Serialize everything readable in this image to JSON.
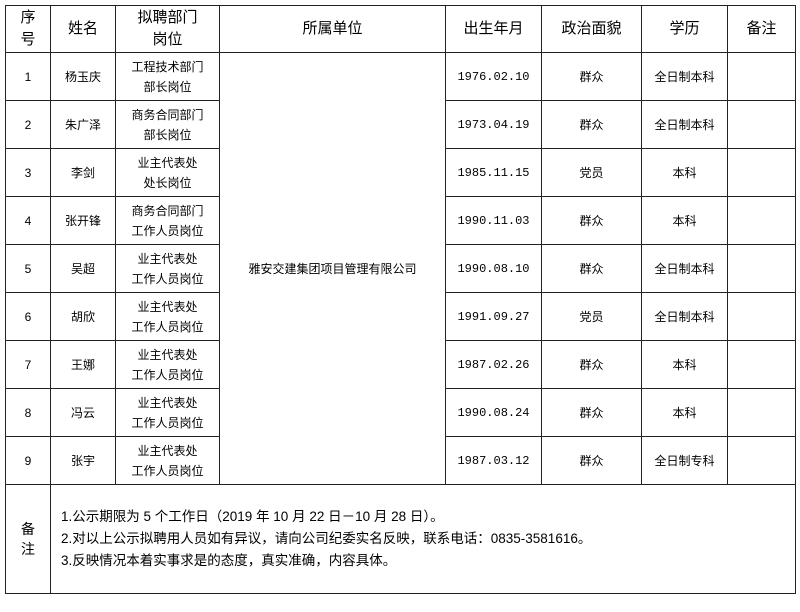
{
  "headers": {
    "index": [
      "序",
      "号"
    ],
    "name": "姓名",
    "position": [
      "拟聘部门",
      "岗位"
    ],
    "unit": "所属单位",
    "birth": "出生年月",
    "political": "政治面貌",
    "education": "学历",
    "remark": "备注"
  },
  "unit_value": "雅安交建集团项目管理有限公司",
  "rows": [
    {
      "index": "1",
      "name": "杨玉庆",
      "position": [
        "工程技术部门",
        "部长岗位"
      ],
      "birth": "1976.02.10",
      "political": "群众",
      "education": "全日制本科",
      "remark": ""
    },
    {
      "index": "2",
      "name": "朱广泽",
      "position": [
        "商务合同部门",
        "部长岗位"
      ],
      "birth": "1973.04.19",
      "political": "群众",
      "education": "全日制本科",
      "remark": ""
    },
    {
      "index": "3",
      "name": "李剑",
      "position": [
        "业主代表处",
        "处长岗位"
      ],
      "birth": "1985.11.15",
      "political": "党员",
      "education": "本科",
      "remark": ""
    },
    {
      "index": "4",
      "name": "张开锋",
      "position": [
        "商务合同部门",
        "工作人员岗位"
      ],
      "birth": "1990.11.03",
      "political": "群众",
      "education": "本科",
      "remark": ""
    },
    {
      "index": "5",
      "name": "吴超",
      "position": [
        "业主代表处",
        "工作人员岗位"
      ],
      "birth": "1990.08.10",
      "political": "群众",
      "education": "全日制本科",
      "remark": ""
    },
    {
      "index": "6",
      "name": "胡欣",
      "position": [
        "业主代表处",
        "工作人员岗位"
      ],
      "birth": "1991.09.27",
      "political": "党员",
      "education": "全日制本科",
      "remark": ""
    },
    {
      "index": "7",
      "name": "王娜",
      "position": [
        "业主代表处",
        "工作人员岗位"
      ],
      "birth": "1987.02.26",
      "political": "群众",
      "education": "本科",
      "remark": ""
    },
    {
      "index": "8",
      "name": "冯云",
      "position": [
        "业主代表处",
        "工作人员岗位"
      ],
      "birth": "1990.08.24",
      "political": "群众",
      "education": "本科",
      "remark": ""
    },
    {
      "index": "9",
      "name": "张宇",
      "position": [
        "业主代表处",
        "工作人员岗位"
      ],
      "birth": "1987.03.12",
      "political": "群众",
      "education": "全日制专科",
      "remark": ""
    }
  ],
  "notes": {
    "label": [
      "备",
      "注"
    ],
    "lines": [
      "1.公示期限为 5 个工作日（2019 年 10 月 22 日－10 月 28 日）。",
      "2.对以上公示拟聘用人员如有异议，请向公司纪委实名反映，联系电话：0835-3581616。",
      "3.反映情况本着实事求是的态度，真实准确，内容具体。"
    ]
  }
}
